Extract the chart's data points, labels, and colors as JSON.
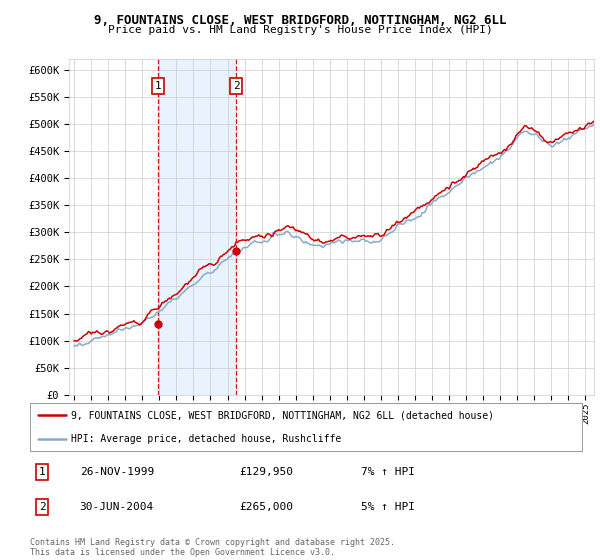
{
  "title": "9, FOUNTAINS CLOSE, WEST BRIDGFORD, NOTTINGHAM, NG2 6LL",
  "subtitle": "Price paid vs. HM Land Registry's House Price Index (HPI)",
  "ylim": [
    0,
    620000
  ],
  "yticks": [
    0,
    50000,
    100000,
    150000,
    200000,
    250000,
    300000,
    350000,
    400000,
    450000,
    500000,
    550000,
    600000
  ],
  "ytick_labels": [
    "£0",
    "£50K",
    "£100K",
    "£150K",
    "£200K",
    "£250K",
    "£300K",
    "£350K",
    "£400K",
    "£450K",
    "£500K",
    "£550K",
    "£600K"
  ],
  "xlim_start": 1994.7,
  "xlim_end": 2025.5,
  "xtick_years": [
    1995,
    1996,
    1997,
    1998,
    1999,
    2000,
    2001,
    2002,
    2003,
    2004,
    2005,
    2006,
    2007,
    2008,
    2009,
    2010,
    2011,
    2012,
    2013,
    2014,
    2015,
    2016,
    2017,
    2018,
    2019,
    2020,
    2021,
    2022,
    2023,
    2024,
    2025
  ],
  "sale1_x": 1999.92,
  "sale1_y": 129950,
  "sale1_label": "1",
  "sale2_x": 2004.5,
  "sale2_y": 265000,
  "sale2_label": "2",
  "red_color": "#cc0000",
  "blue_color": "#88aacc",
  "shade_color": "#ddeeff",
  "legend_line1": "9, FOUNTAINS CLOSE, WEST BRIDGFORD, NOTTINGHAM, NG2 6LL (detached house)",
  "legend_line2": "HPI: Average price, detached house, Rushcliffe",
  "table_row1": [
    "1",
    "26-NOV-1999",
    "£129,950",
    "7% ↑ HPI"
  ],
  "table_row2": [
    "2",
    "30-JUN-2004",
    "£265,000",
    "5% ↑ HPI"
  ],
  "footnote": "Contains HM Land Registry data © Crown copyright and database right 2025.\nThis data is licensed under the Open Government Licence v3.0.",
  "bg_color": "#ffffff",
  "grid_color": "#cccccc"
}
